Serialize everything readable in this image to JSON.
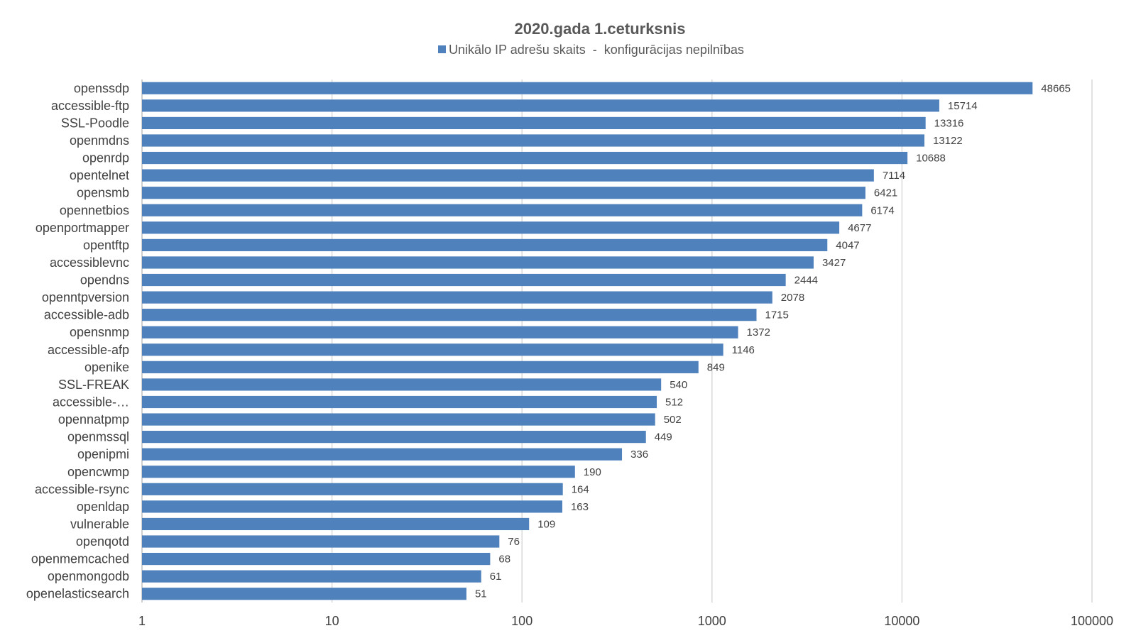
{
  "chart_data": {
    "type": "bar",
    "orientation": "horizontal",
    "title": "2020.gada 1.ceturksnis",
    "xscale": "log",
    "xlim": [
      1,
      100000
    ],
    "xticks": [
      "1",
      "10",
      "100",
      "1000",
      "10000",
      "100000"
    ],
    "grid": true,
    "legend_position": "top",
    "series": [
      {
        "name": "Unikālo IP adrešu skaits  -  konfigurācijas nepilnības",
        "color": "#4f81bd",
        "values": [
          48665,
          15714,
          13316,
          13122,
          10688,
          7114,
          6421,
          6174,
          4677,
          4047,
          3427,
          2444,
          2078,
          1715,
          1372,
          1146,
          849,
          540,
          512,
          502,
          449,
          336,
          190,
          164,
          163,
          109,
          76,
          68,
          61,
          51
        ]
      }
    ],
    "categories": [
      "openssdp",
      "accessible-ftp",
      "SSL-Poodle",
      "openmdns",
      "openrdp",
      "opentelnet",
      "opensmb",
      "opennetbios",
      "openportmapper",
      "opentftp",
      "accessiblevnc",
      "opendns",
      "openntpversion",
      "accessible-adb",
      "opensnmp",
      "accessible-afp",
      "openike",
      "SSL-FREAK",
      "accessible-…",
      "opennatpmp",
      "openmssql",
      "openipmi",
      "opencwmp",
      "accessible-rsync",
      "openldap",
      "vulnerable",
      "openqotd",
      "openmemcached",
      "openmongodb",
      "openelasticsearch"
    ]
  }
}
